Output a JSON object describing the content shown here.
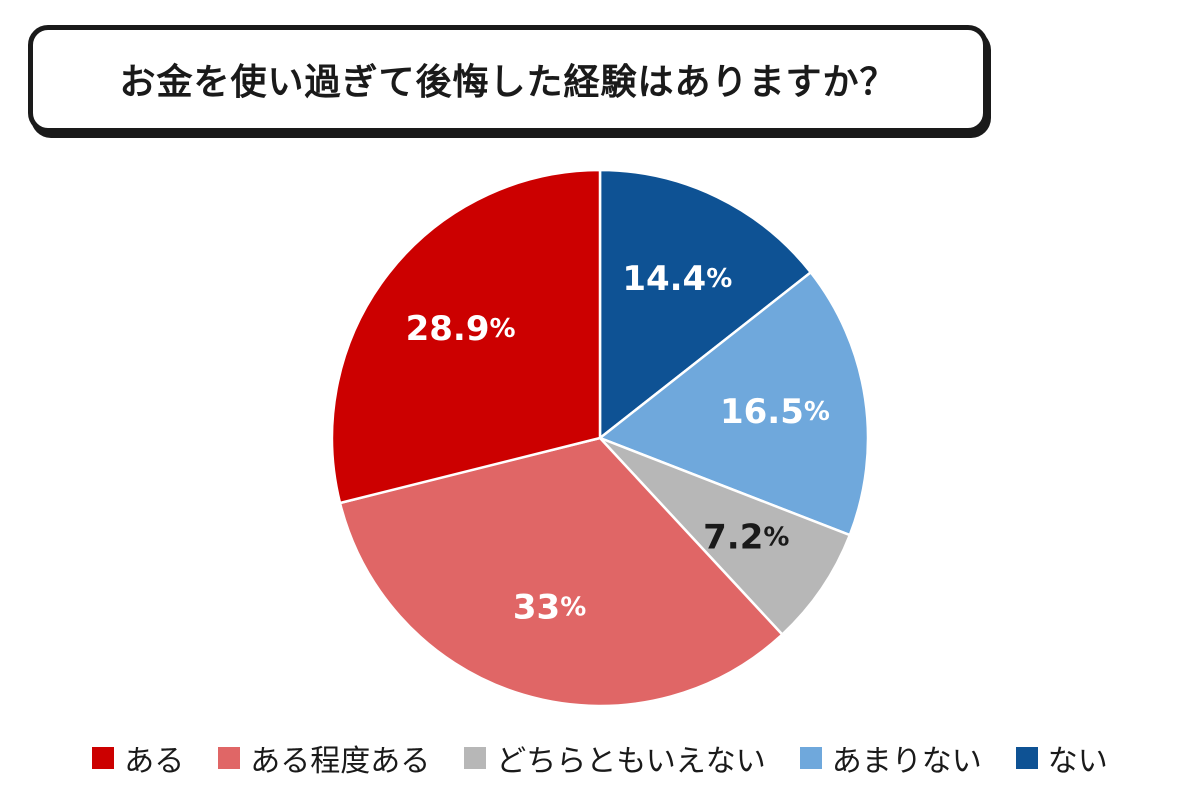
{
  "title": "お金を使い過ぎて後悔した経験はありますか？",
  "chart_data": {
    "type": "pie",
    "start_angle_deg": 0,
    "direction": "clockwise",
    "unit": "%",
    "slices": [
      {
        "label": "ない",
        "value": 14.4,
        "value_text": "14.4",
        "color": "#0e5294",
        "label_color": "#ffffff"
      },
      {
        "label": "あまりない",
        "value": 16.5,
        "value_text": "16.5",
        "color": "#6fa8dc",
        "label_color": "#ffffff"
      },
      {
        "label": "どちらともいえない",
        "value": 7.2,
        "value_text": "7.2",
        "color": "#b7b7b7",
        "label_color": "#1a1a1a"
      },
      {
        "label": "ある程度ある",
        "value": 33,
        "value_text": "33",
        "color": "#e06666",
        "label_color": "#ffffff"
      },
      {
        "label": "ある",
        "value": 28.9,
        "value_text": "28.9",
        "color": "#cc0000",
        "label_color": "#ffffff"
      }
    ],
    "legend": [
      {
        "label": "ある",
        "color": "#cc0000"
      },
      {
        "label": "ある程度ある",
        "color": "#e06666"
      },
      {
        "label": "どちらともいえない",
        "color": "#b7b7b7"
      },
      {
        "label": "あまりない",
        "color": "#6fa8dc"
      },
      {
        "label": "ない",
        "color": "#0e5294"
      }
    ],
    "legend_position": "bottom"
  }
}
